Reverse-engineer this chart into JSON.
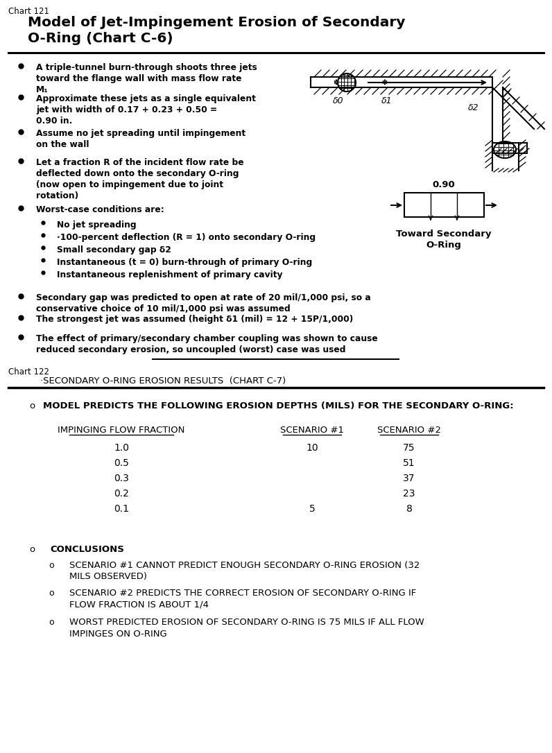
{
  "bg_color": "#ffffff",
  "chart121_label": "Chart 121",
  "chart121_title": "Model of Jet-Impingement Erosion of Secondary\nO-Ring (Chart C-6)",
  "bullet1": "A triple-tunnel burn-through shoots three jets\ntoward the flange wall with mass flow rate\nM₁",
  "bullet2": "Approximate these jets as a single equivalent\njet with width of 0.17 + 0.23 + 0.50 =\n0.90 in.",
  "bullet3": "Assume no jet spreading until impingement\non the wall",
  "bullet4": "Let a fraction R of the incident flow rate be\ndeflected down onto the secondary O-ring\n(now open to impingement due to joint\nrotation)",
  "bullet5": "Worst-case conditions are:",
  "sub1": "No jet spreading",
  "sub2": "·100-percent deflection (R = 1) onto secondary O-ring",
  "sub3": "Small secondary gap δ2",
  "sub4": "Instantaneous (t = 0) burn-through of primary O-ring",
  "sub5": "Instantaneous replenishment of primary cavity",
  "bullet6": "Secondary gap was predicted to open at rate of 20 mil/1,000 psi, so a\nconservative choice of 10 mil/1,000 psi was assumed",
  "bullet7": "The strongest jet was assumed (height δ1 (mil) = 12 + 15P/1,000)",
  "bullet8": "The effect of primary/secondary chamber coupling was shown to cause\nreduced secondary erosion, so uncoupled (worst) case was used",
  "diagram_label_090": "0.90",
  "diagram_label_toward": "Toward Secondary\nO-Ring",
  "diagram_label_d0": "δ0",
  "diagram_label_d1": "δ1",
  "diagram_label_d2": "δ2",
  "chart122_label": "Chart 122",
  "chart122_title": "·SECONDARY O-RING EROSION RESULTS  (CHART C-7)",
  "section1_text": "MODEL PREDICTS THE FOLLOWING EROSION DEPTHS (MILS) FOR THE SECONDARY O-RING:",
  "col_headers": [
    "IMPINGING FLOW FRACTION",
    "SCENARIO #1",
    "SCENARIO #2"
  ],
  "table_rows": [
    [
      "1.0",
      "10",
      "75"
    ],
    [
      "0.5",
      "",
      "51"
    ],
    [
      "0.3",
      "",
      "37"
    ],
    [
      "0.2",
      "",
      "23"
    ],
    [
      "0.1",
      "5",
      "8"
    ]
  ],
  "conc_header": "CONCLUSIONS",
  "conc1": "SCENARIO #1 CANNOT PREDICT ENOUGH SECONDARY O-RING EROSION (32\nMILS OBSERVED)",
  "conc2": "SCENARIO #2 PREDICTS THE CORRECT EROSION OF SECONDARY O-RING IF\nFLOW FRACTION IS ABOUT 1/4",
  "conc3": "WORST PREDICTED EROSION OF SECONDARY O-RING IS 75 MILS IF ALL FLOW\nIMPINGES ON O-RING"
}
